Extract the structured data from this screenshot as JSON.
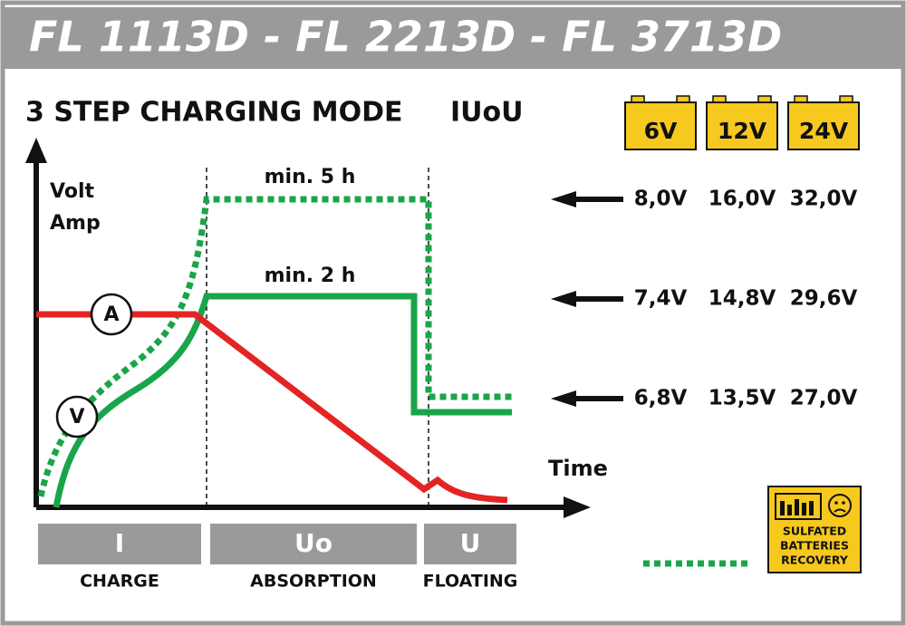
{
  "header": {
    "title": "FL 1113D - FL 2213D - FL 3713D"
  },
  "diagram": {
    "title": "3 STEP CHARGING MODE",
    "mode": "IUoU",
    "y_axis_labels": [
      "Volt",
      "Amp"
    ],
    "x_axis_label": "Time",
    "durations": [
      "min. 5 h",
      "min. 2 h"
    ],
    "curve_markers": [
      "A",
      "V"
    ],
    "phases": [
      {
        "code": "I",
        "label": "CHARGE"
      },
      {
        "code": "Uo",
        "label": "ABSORPTION"
      },
      {
        "code": "U",
        "label": "FLOATING"
      }
    ]
  },
  "voltage_table": {
    "batteries": [
      "6V",
      "12V",
      "24V"
    ],
    "rows": [
      [
        "8,0V",
        "16,0V",
        "32,0V"
      ],
      [
        "7,4V",
        "14,8V",
        "29,6V"
      ],
      [
        "6,8V",
        "13,5V",
        "27,0V"
      ]
    ]
  },
  "legend": {
    "badge": [
      "SULFATED",
      "BATTERIES",
      "RECOVERY"
    ]
  }
}
